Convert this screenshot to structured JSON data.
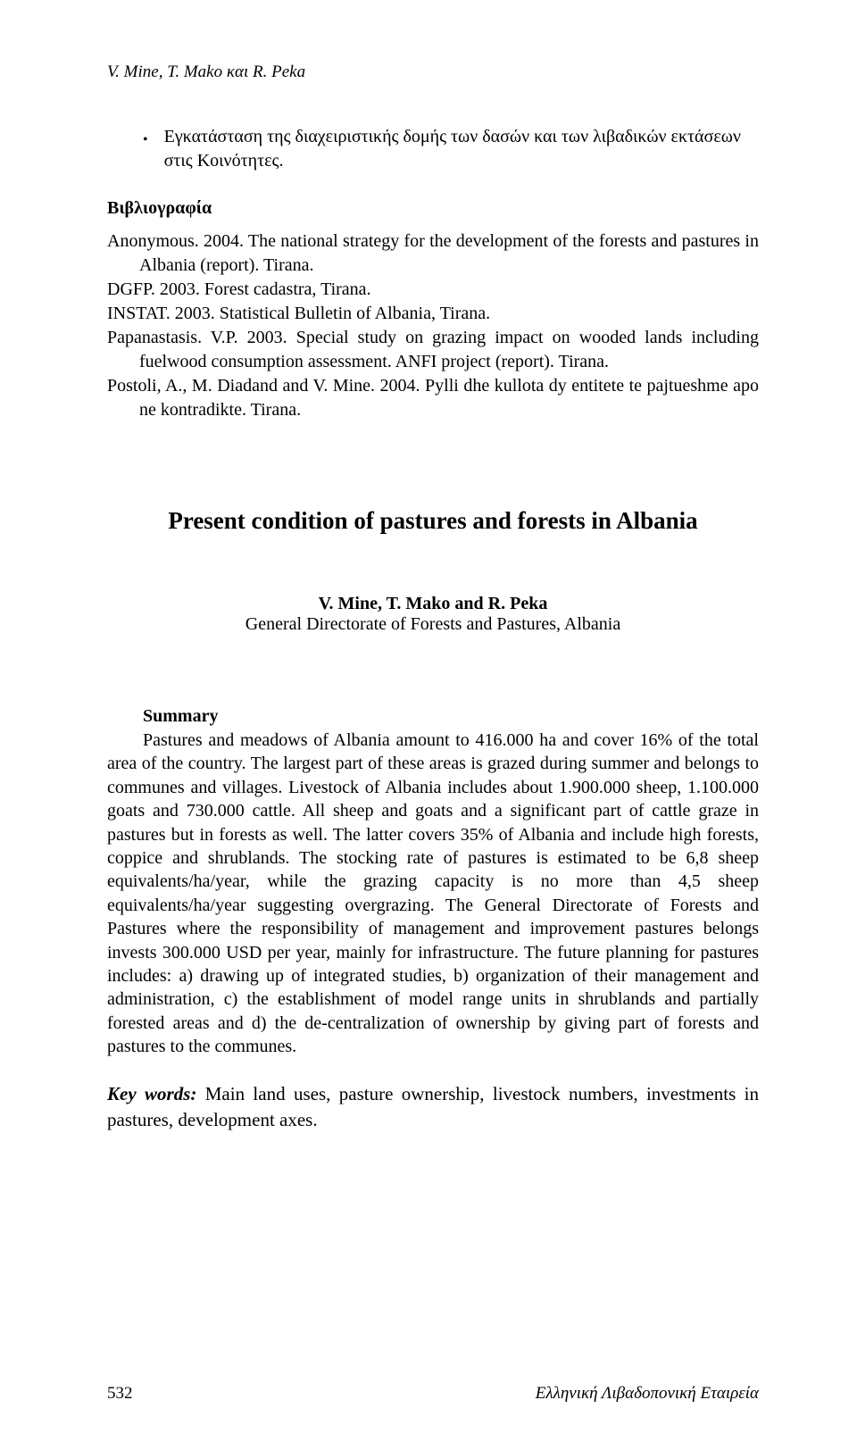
{
  "header": {
    "authors_italic": "V. Mine, T. Mako και R. Peka"
  },
  "bullet": {
    "text": "Εγκατάσταση της διαχειριστικής δομής των δασών και των λιβαδικών εκτάσεων στις Κοινότητες."
  },
  "bibliography": {
    "heading": "Βιβλιογραφία",
    "refs": {
      "r1": "Anonymous. 2004. The national strategy for the development of the forests and pastures in Albania (report). Tirana.",
      "r2": "DGFP. 2003. Forest cadastra, Tirana.",
      "r3": "INSTAT. 2003. Statistical Bulletin of Albania, Tirana.",
      "r4": "Papanastasis. V.P. 2003. Special study on grazing impact on wooded lands including fuelwood consumption assessment. ANFI project (report). Tirana.",
      "r5": "Postoli, A., M. Diadand and V. Mine. 2004. Pylli dhe kullota dy entitete te pajtueshme apo ne kontradikte. Tirana."
    }
  },
  "title": "Present condition of pastures and forests in Albania",
  "authors": {
    "names": "V. Mine, T. Mako and R. Peka",
    "affiliation": "General Directorate of Forests and Pastures, Albania"
  },
  "summary": {
    "heading": "Summary",
    "text": "Pastures and meadows of Albania amount to 416.000 ha and cover 16% of the total area of the country. The largest part of these areas is grazed during summer and belongs to communes and villages. Livestock of Albania includes about 1.900.000 sheep, 1.100.000 goats and 730.000 cattle. All sheep and goats and a significant part of cattle graze in pastures but in forests as well. The latter covers 35% of Albania and include high forests, coppice and shrublands. The stocking rate of pastures is estimated to be 6,8 sheep equivalents/ha/year, while the grazing capacity is no more than 4,5 sheep equivalents/ha/year suggesting overgrazing. The General Directorate of Forests and Pastures where the responsibility of management and improvement pastures belongs invests 300.000 USD per year, mainly for infrastructure. The future planning for pastures includes: a) drawing up of integrated studies, b) organization of their management and administration, c) the establishment of model range units in shrublands and partially forested areas and d) the de-centralization of ownership by giving part of forests and pastures to the communes."
  },
  "keywords": {
    "label": "Key words:",
    "text": " Main land uses, pasture ownership, livestock numbers, investments in pastures, development axes."
  },
  "footer": {
    "page": "532",
    "right": "Ελληνική Λιβαδοπονική Εταιρεία"
  }
}
